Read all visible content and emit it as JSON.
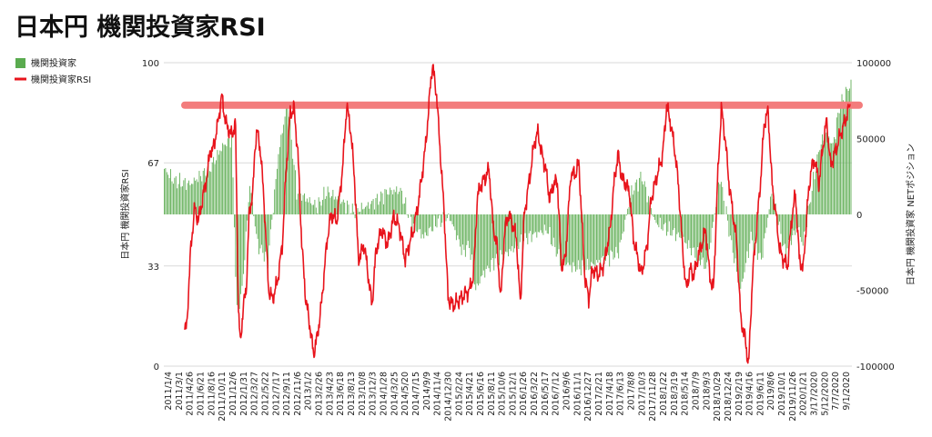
{
  "chart_data": {
    "type": "bar+line",
    "title": "日本円 機関投資家RSI",
    "legend": {
      "placement": "top-left",
      "entries": [
        {
          "name": "機関投資家",
          "kind": "bar",
          "color": "#5aab4f"
        },
        {
          "name": "機関投資家RSI",
          "kind": "line",
          "color": "#e8141c"
        }
      ]
    },
    "y_left": {
      "label": "日本円 機関投資家RSI",
      "range": [
        0,
        100
      ],
      "ticks": [
        "100",
        "67",
        "33",
        "0"
      ],
      "tick_values": [
        100,
        67,
        33,
        0
      ]
    },
    "y_right": {
      "label": "日本円 機関投資家 NETポジション",
      "range": [
        -100000,
        100000
      ],
      "ticks": [
        "100000",
        "50000",
        "0",
        "-50000",
        "-100000"
      ],
      "tick_values": [
        100000,
        50000,
        0,
        -50000,
        -100000
      ]
    },
    "x_tick_labels": [
      "2011/1/4",
      "2011/3/1",
      "2011/4/26",
      "2011/6/21",
      "2011/8/16",
      "2011/10/11",
      "2011/12/6",
      "2012/1/31",
      "2012/3/27",
      "2012/5/22",
      "2012/7/17",
      "2012/9/11",
      "2012/11/6",
      "2013/1/2",
      "2013/2/26",
      "2013/4/23",
      "2013/6/18",
      "2013/8/13",
      "2013/10/8",
      "2013/12/3",
      "2014/1/28",
      "2014/3/25",
      "2014/5/20",
      "2014/7/15",
      "2014/9/9",
      "2014/11/4",
      "2014/12/30",
      "2015/2/24",
      "2015/4/21",
      "2015/6/16",
      "2015/8/11",
      "2015/10/6",
      "2015/12/1",
      "2016/1/26",
      "2016/3/22",
      "2016/5/17",
      "2016/7/12",
      "2016/9/6",
      "2016/11/1",
      "2016/12/27",
      "2017/2/21",
      "2017/4/18",
      "2017/6/13",
      "2017/8/8",
      "2017/10/3",
      "2017/11/28",
      "2018/1/22",
      "2018/3/19",
      "2018/5/14",
      "2018/7/9",
      "2018/9/3",
      "2018/10/29",
      "2018/12/24",
      "2019/2/19",
      "2019/4/16",
      "2019/6/11",
      "2019/8/6",
      "2019/10/1",
      "2019/11/26",
      "2020/1/21",
      "3/17/2020",
      "5/12/2020",
      "7/7/2020",
      "9/1/2020"
    ],
    "reference_line": {
      "axis": "left",
      "value": 86,
      "color": "#f37c7c"
    },
    "net_position_keypoints": [
      [
        0,
        30000
      ],
      [
        8,
        22000
      ],
      [
        20,
        20000
      ],
      [
        35,
        30000
      ],
      [
        45,
        45000
      ],
      [
        52,
        50000
      ],
      [
        56,
        -65000
      ],
      [
        60,
        -50000
      ],
      [
        66,
        20000
      ],
      [
        72,
        -20000
      ],
      [
        80,
        -30000
      ],
      [
        88,
        40000
      ],
      [
        95,
        75000
      ],
      [
        102,
        15000
      ],
      [
        110,
        10000
      ],
      [
        118,
        5000
      ],
      [
        125,
        15000
      ],
      [
        135,
        10000
      ],
      [
        145,
        2000
      ],
      [
        155,
        5000
      ],
      [
        165,
        10000
      ],
      [
        172,
        15000
      ],
      [
        182,
        16000
      ],
      [
        190,
        -5000
      ],
      [
        200,
        -15000
      ],
      [
        210,
        -5000
      ],
      [
        220,
        -2000
      ],
      [
        230,
        -25000
      ],
      [
        235,
        -20000
      ],
      [
        240,
        -50000
      ],
      [
        245,
        -40000
      ],
      [
        255,
        -30000
      ],
      [
        265,
        -25000
      ],
      [
        280,
        -15000
      ],
      [
        295,
        -10000
      ],
      [
        305,
        -30000
      ],
      [
        315,
        -35000
      ],
      [
        325,
        -35000
      ],
      [
        338,
        -30000
      ],
      [
        350,
        -25000
      ],
      [
        360,
        15000
      ],
      [
        368,
        25000
      ],
      [
        378,
        -5000
      ],
      [
        388,
        -10000
      ],
      [
        398,
        -15000
      ],
      [
        408,
        -25000
      ],
      [
        418,
        -35000
      ],
      [
        428,
        25000
      ],
      [
        437,
        -20000
      ],
      [
        444,
        -50000
      ],
      [
        452,
        -15000
      ],
      [
        460,
        -30000
      ],
      [
        468,
        15000
      ],
      [
        478,
        -25000
      ],
      [
        488,
        -8000
      ],
      [
        492,
        -20000
      ],
      [
        500,
        22000
      ],
      [
        505,
        45000
      ],
      [
        510,
        55000
      ],
      [
        515,
        45000
      ],
      [
        520,
        70000
      ],
      [
        525,
        80000
      ],
      [
        528,
        85000
      ]
    ],
    "rsi_keypoints": [
      [
        0,
        12
      ],
      [
        2,
        13
      ],
      [
        6,
        38
      ],
      [
        10,
        52
      ],
      [
        14,
        48
      ],
      [
        20,
        58
      ],
      [
        24,
        65
      ],
      [
        26,
        72
      ],
      [
        28,
        70
      ],
      [
        33,
        78
      ],
      [
        36,
        85
      ],
      [
        38,
        89
      ],
      [
        42,
        80
      ],
      [
        48,
        76
      ],
      [
        52,
        80
      ],
      [
        55,
        19
      ],
      [
        57,
        7
      ],
      [
        60,
        20
      ],
      [
        63,
        25
      ],
      [
        66,
        50
      ],
      [
        70,
        58
      ],
      [
        72,
        72
      ],
      [
        74,
        78
      ],
      [
        78,
        70
      ],
      [
        82,
        50
      ],
      [
        86,
        25
      ],
      [
        90,
        22
      ],
      [
        95,
        28
      ],
      [
        100,
        40
      ],
      [
        104,
        65
      ],
      [
        108,
        83
      ],
      [
        112,
        85
      ],
      [
        116,
        70
      ],
      [
        120,
        40
      ],
      [
        124,
        22
      ],
      [
        128,
        14
      ],
      [
        132,
        4
      ],
      [
        136,
        10
      ],
      [
        140,
        20
      ],
      [
        146,
        42
      ],
      [
        150,
        50
      ],
      [
        156,
        48
      ],
      [
        162,
        66
      ],
      [
        166,
        86
      ],
      [
        170,
        78
      ],
      [
        174,
        62
      ],
      [
        178,
        35
      ],
      [
        184,
        40
      ],
      [
        188,
        30
      ],
      [
        192,
        20
      ],
      [
        196,
        38
      ],
      [
        202,
        45
      ],
      [
        208,
        40
      ],
      [
        214,
        49
      ],
      [
        220,
        46
      ],
      [
        226,
        35
      ],
      [
        230,
        40
      ],
      [
        234,
        44
      ],
      [
        240,
        55
      ],
      [
        246,
        70
      ],
      [
        250,
        84
      ],
      [
        252,
        94
      ],
      [
        254,
        99
      ],
      [
        258,
        90
      ],
      [
        262,
        70
      ],
      [
        266,
        50
      ],
      [
        270,
        22
      ],
      [
        276,
        20
      ],
      [
        282,
        22
      ],
      [
        288,
        24
      ],
      [
        292,
        25
      ],
      [
        296,
        30
      ],
      [
        300,
        56
      ],
      [
        304,
        60
      ],
      [
        308,
        62
      ],
      [
        312,
        65
      ],
      [
        316,
        46
      ],
      [
        320,
        40
      ],
      [
        324,
        22
      ],
      [
        328,
        45
      ],
      [
        332,
        50
      ],
      [
        336,
        47
      ],
      [
        340,
        42
      ],
      [
        344,
        20
      ],
      [
        348,
        50
      ],
      [
        354,
        63
      ],
      [
        358,
        73
      ],
      [
        362,
        77
      ],
      [
        366,
        70
      ],
      [
        370,
        65
      ],
      [
        374,
        55
      ],
      [
        378,
        60
      ],
      [
        382,
        61
      ],
      [
        386,
        33
      ],
      [
        390,
        35
      ],
      [
        396,
        64
      ],
      [
        400,
        63
      ],
      [
        404,
        67
      ],
      [
        410,
        30
      ],
      [
        414,
        22
      ],
      [
        418,
        32
      ],
      [
        424,
        30
      ],
      [
        430,
        34
      ],
      [
        436,
        45
      ],
      [
        440,
        60
      ],
      [
        444,
        70
      ],
      [
        448,
        62
      ],
      [
        452,
        60
      ],
      [
        456,
        57
      ],
      [
        460,
        42
      ],
      [
        464,
        36
      ],
      [
        468,
        30
      ],
      [
        474,
        40
      ],
      [
        478,
        55
      ],
      [
        482,
        60
      ],
      [
        486,
        65
      ],
      [
        490,
        70
      ],
      [
        494,
        86
      ],
      [
        498,
        80
      ],
      [
        502,
        72
      ],
      [
        506,
        60
      ],
      [
        510,
        40
      ],
      [
        514,
        25
      ],
      [
        518,
        32
      ],
      [
        522,
        30
      ],
      [
        526,
        36
      ],
      [
        530,
        40
      ],
      [
        534,
        45
      ],
      [
        538,
        30
      ],
      [
        542,
        25
      ],
      [
        546,
        60
      ],
      [
        550,
        85
      ],
      [
        554,
        75
      ],
      [
        558,
        60
      ],
      [
        562,
        50
      ],
      [
        566,
        40
      ],
      [
        570,
        15
      ],
      [
        574,
        10
      ],
      [
        578,
        0
      ],
      [
        582,
        30
      ],
      [
        586,
        45
      ],
      [
        590,
        60
      ],
      [
        594,
        80
      ],
      [
        598,
        84
      ],
      [
        602,
        60
      ],
      [
        606,
        50
      ],
      [
        610,
        38
      ],
      [
        614,
        35
      ],
      [
        618,
        33
      ],
      [
        622,
        48
      ],
      [
        626,
        57
      ],
      [
        630,
        35
      ],
      [
        634,
        32
      ],
      [
        638,
        52
      ],
      [
        642,
        65
      ],
      [
        646,
        68
      ],
      [
        650,
        60
      ],
      [
        654,
        72
      ],
      [
        658,
        81
      ],
      [
        662,
        66
      ],
      [
        666,
        70
      ],
      [
        670,
        74
      ],
      [
        674,
        78
      ],
      [
        678,
        82
      ],
      [
        682,
        86
      ]
    ]
  }
}
